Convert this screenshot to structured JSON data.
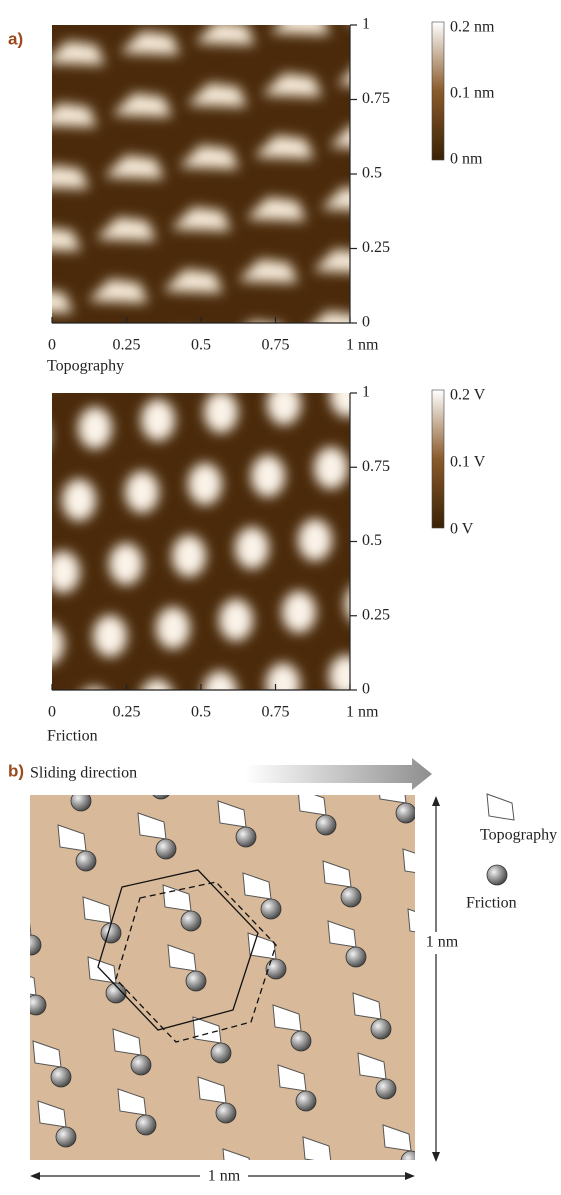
{
  "panel_a": {
    "label": "a)",
    "topography": {
      "caption": "Topography",
      "x_ticks": [
        "0",
        "0.25",
        "0.5",
        "0.75",
        "1 nm"
      ],
      "y_ticks": [
        "1",
        "0.75",
        "0.5",
        "0.25",
        "0"
      ],
      "colorbar": [
        "0.2 nm",
        "0.1 nm",
        "0 nm"
      ]
    },
    "friction": {
      "caption": "Friction",
      "x_ticks": [
        "0",
        "0.25",
        "0.5",
        "0.75",
        "1 nm"
      ],
      "y_ticks": [
        "1",
        "0.75",
        "0.5",
        "0.25",
        "0"
      ],
      "colorbar": [
        "0.2 V",
        "0.1 V",
        "0 V"
      ]
    }
  },
  "panel_b": {
    "label": "b)",
    "sliding_direction": "Sliding direction",
    "legend": [
      "Topography",
      "Friction"
    ],
    "scale_x": "1 nm",
    "scale_y": "1 nm"
  }
}
